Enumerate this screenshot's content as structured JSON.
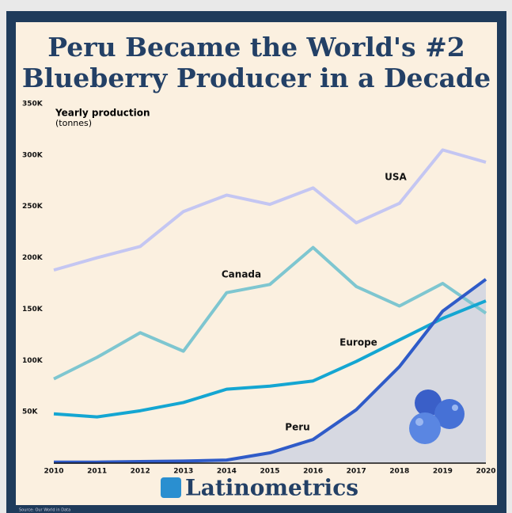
{
  "chart_data": {
    "type": "line",
    "title": [
      "Peru Became the World's #2",
      "Blueberry Producer in a Decade"
    ],
    "y_axis_label": [
      "Yearly production",
      "(tonnes)"
    ],
    "x": [
      2010,
      2011,
      2012,
      2013,
      2014,
      2015,
      2016,
      2017,
      2018,
      2019,
      2020
    ],
    "xlim": [
      2010,
      2020
    ],
    "xticks": [
      2010,
      2011,
      2012,
      2013,
      2014,
      2015,
      2016,
      2017,
      2018,
      2019,
      2020
    ],
    "ylim": [
      0,
      350000
    ],
    "yticks": [
      {
        "value": 50000,
        "label": "50K"
      },
      {
        "value": 100000,
        "label": "100K"
      },
      {
        "value": 150000,
        "label": "150K"
      },
      {
        "value": 200000,
        "label": "200K"
      },
      {
        "value": 250000,
        "label": "250K"
      },
      {
        "value": 300000,
        "label": "300K"
      },
      {
        "value": 350000,
        "label": "350K"
      }
    ],
    "series": [
      {
        "name": "USA",
        "color": "#c4c6f2",
        "values": [
          188000,
          200000,
          211000,
          245000,
          261000,
          252000,
          268000,
          234000,
          253000,
          305000,
          293000
        ]
      },
      {
        "name": "Canada",
        "color": "#7ec6d0",
        "values": [
          82000,
          103000,
          127000,
          109000,
          166000,
          174000,
          210000,
          172000,
          153000,
          175000,
          146000
        ]
      },
      {
        "name": "Europe",
        "color": "#14a6d2",
        "values": [
          48000,
          45000,
          51000,
          59000,
          72000,
          75000,
          80000,
          99000,
          120000,
          141000,
          158000
        ]
      },
      {
        "name": "Peru",
        "color": "#2f5bc8",
        "area": true,
        "values": [
          1000,
          1000,
          1500,
          2000,
          3000,
          10000,
          23000,
          52000,
          94000,
          148000,
          179000
        ]
      }
    ],
    "brand": "Latinometrics",
    "source": "Source: Our World in Data"
  }
}
